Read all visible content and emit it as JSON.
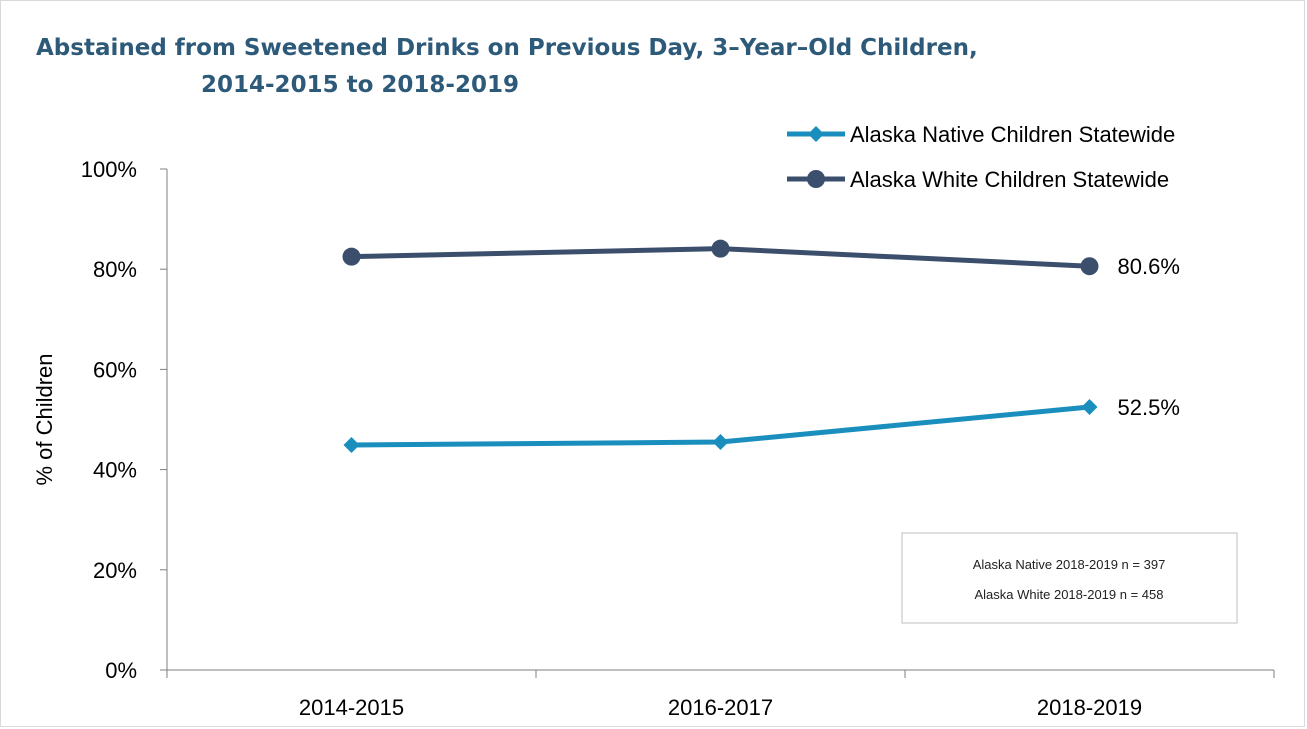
{
  "chart_data": {
    "type": "line",
    "title_lines": [
      "Abstained from Sweetened Drinks on Previous Day, 3–Year–Old Children,",
      "2014-2015 to 2018-2019"
    ],
    "xlabel": "",
    "ylabel": "% of Children",
    "categories": [
      "2014-2015",
      "2016-2017",
      "2018-2019"
    ],
    "ylim": [
      0,
      100
    ],
    "y_ticks": [
      0,
      20,
      40,
      60,
      80,
      100
    ],
    "y_tick_labels": [
      "0%",
      "20%",
      "40%",
      "60%",
      "80%",
      "100%"
    ],
    "grid": false,
    "legend_position": "top-right",
    "series": [
      {
        "name": "Alaska Native Children Statewide",
        "values": [
          44.9,
          45.5,
          52.5
        ],
        "color": "#1a8fbe",
        "marker": "diamond",
        "end_label": "52.5%"
      },
      {
        "name": "Alaska White Children Statewide",
        "values": [
          82.5,
          84.1,
          80.6
        ],
        "color": "#3b4e6b",
        "marker": "circle",
        "end_label": "80.6%"
      }
    ],
    "annotations": [
      "Alaska Native 2018-2019 n = 397",
      "Alaska White 2018-2019 n = 458"
    ]
  }
}
